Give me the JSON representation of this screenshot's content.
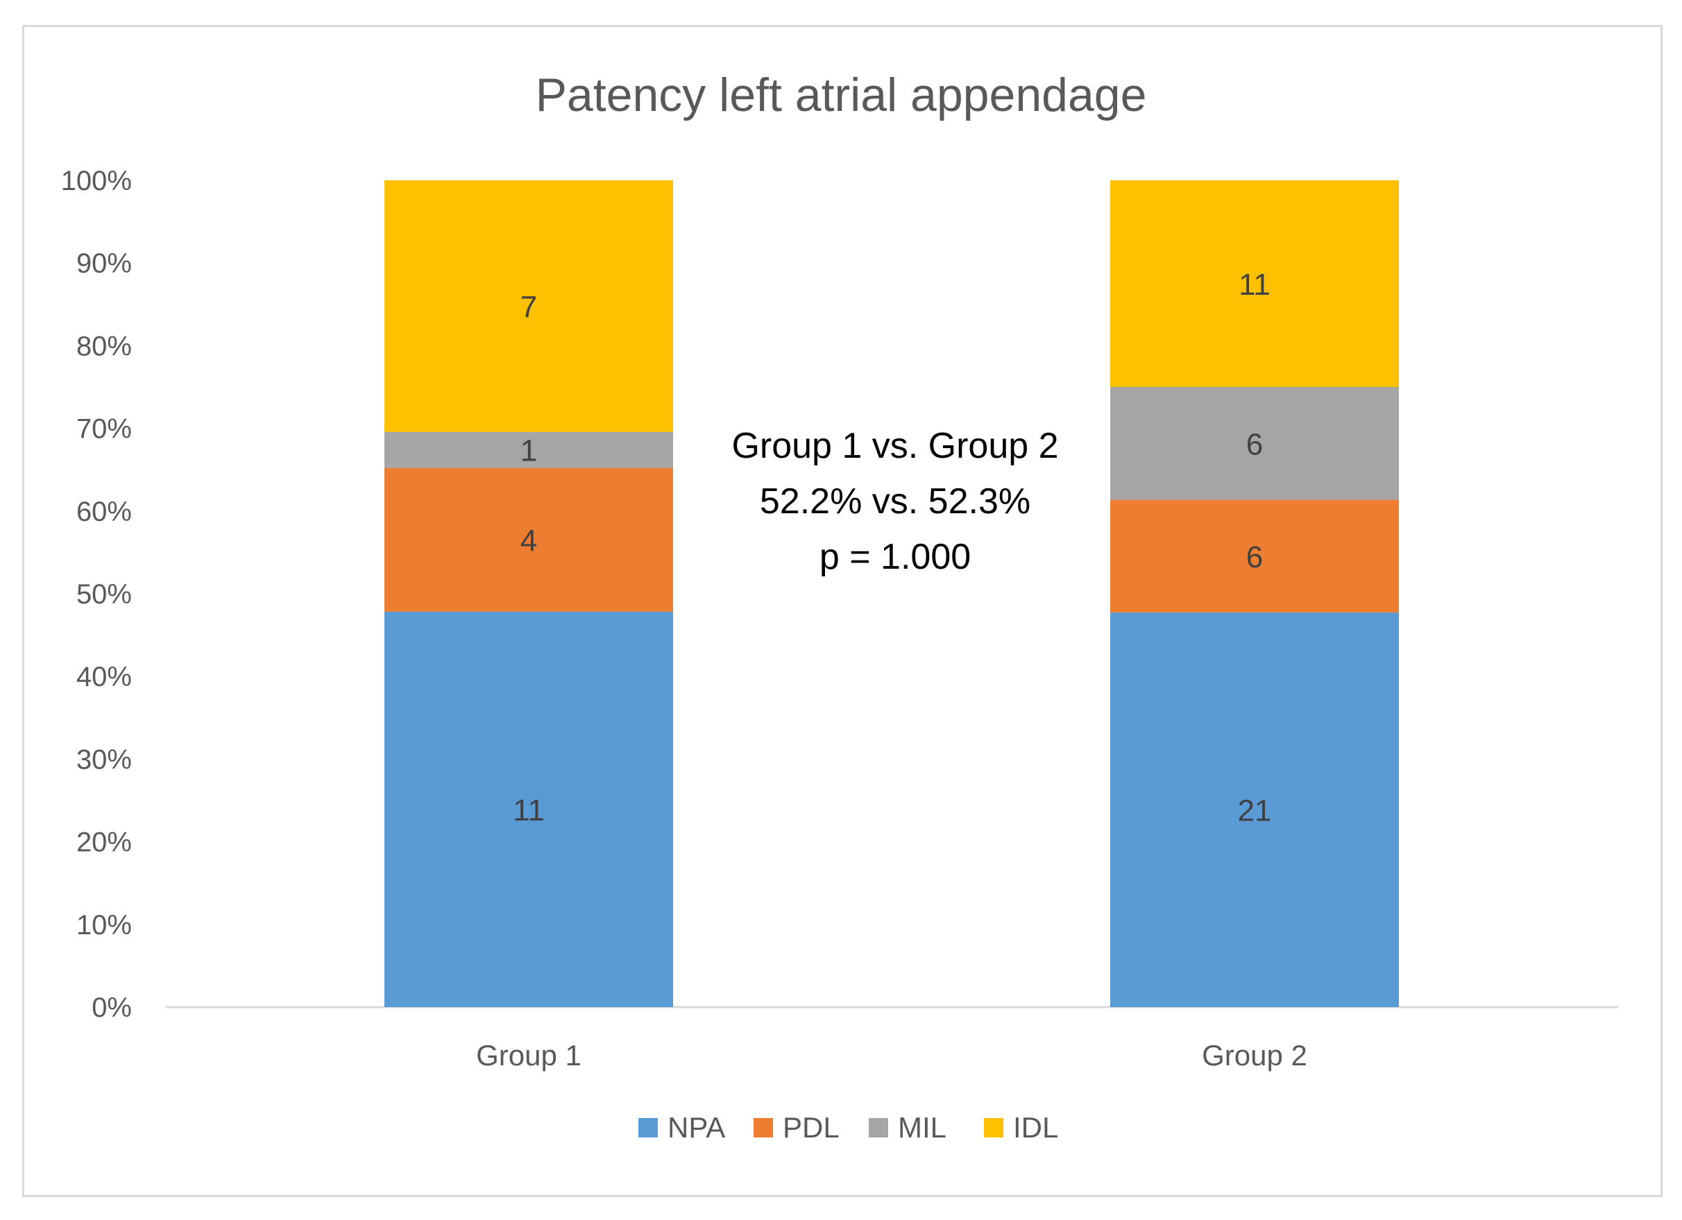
{
  "chart_data": {
    "type": "bar",
    "stacked": true,
    "percent_stacked": true,
    "title": "Patency left atrial appendage",
    "categories": [
      "Group 1",
      "Group 2"
    ],
    "series": [
      {
        "name": "NPA",
        "color": "#5b9bd5",
        "values": [
          11,
          21
        ],
        "labels": [
          "11",
          "21"
        ]
      },
      {
        "name": "PDL",
        "color": "#ed7d31",
        "values": [
          4,
          6
        ],
        "labels": [
          "4",
          "6"
        ]
      },
      {
        "name": "MIL",
        "color": "#a5a5a5",
        "values": [
          1,
          6
        ],
        "labels": [
          "1",
          "6"
        ]
      },
      {
        "name": "IDL",
        "color": "#ffc000",
        "values": [
          7,
          11
        ],
        "labels": [
          "7",
          "11"
        ]
      }
    ],
    "yticks": [
      "0%",
      "10%",
      "20%",
      "30%",
      "40%",
      "50%",
      "60%",
      "70%",
      "80%",
      "90%",
      "100%"
    ],
    "ylim": [
      0,
      100
    ],
    "legend_position": "bottom",
    "grid": false,
    "annotation": [
      "Group 1 vs. Group 2",
      "52.2% vs. 52.3%",
      "p = 1.000"
    ]
  }
}
